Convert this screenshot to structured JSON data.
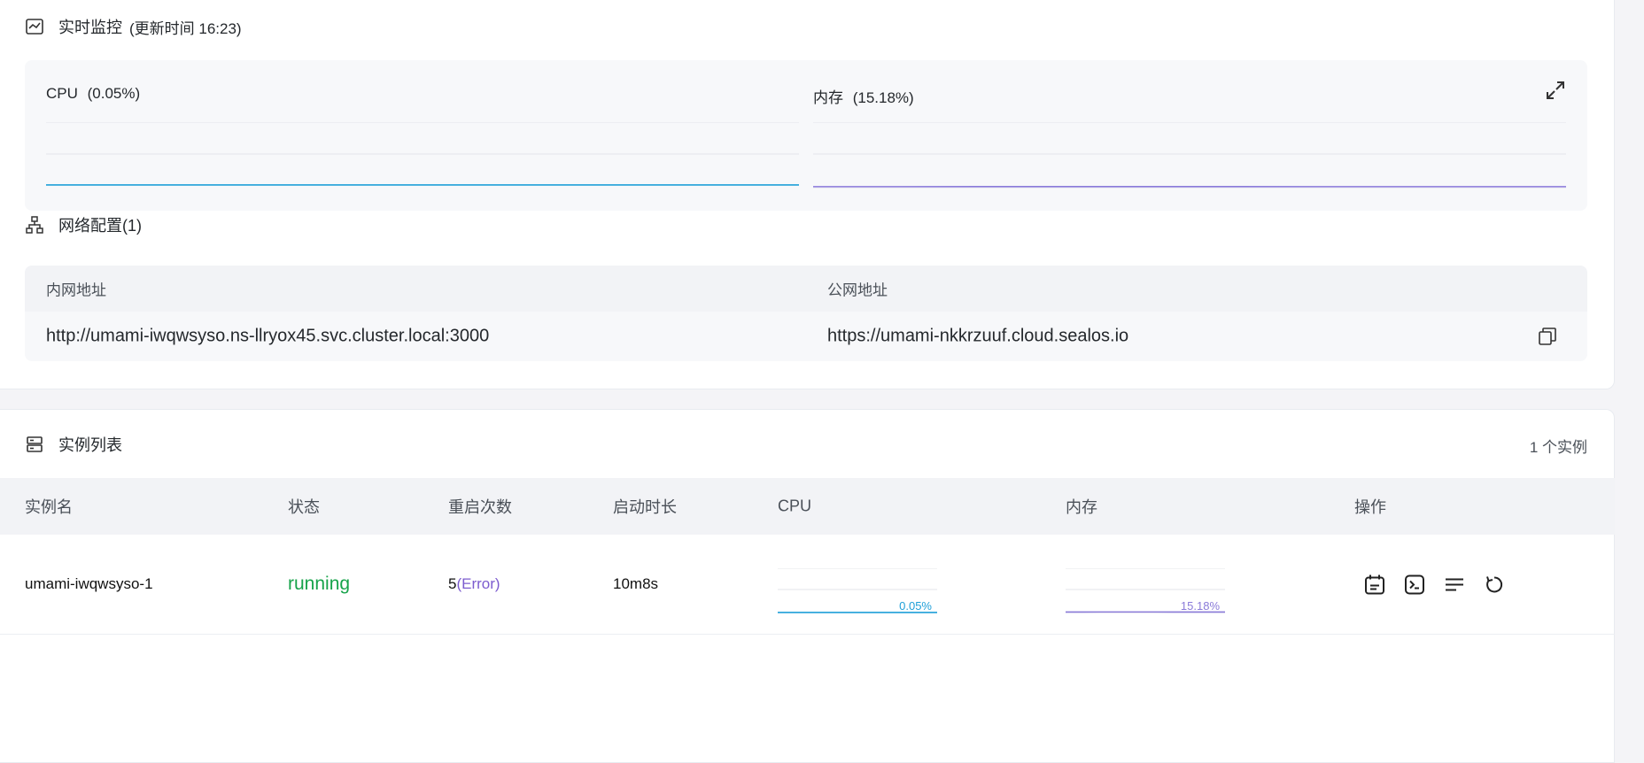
{
  "monitor": {
    "title": "实时监控",
    "updated": "(更新时间 16:23)",
    "cpu_label": "CPU",
    "cpu_value": "(0.05%)",
    "mem_label": "内存",
    "mem_value": "(15.18%)",
    "icons": {
      "section": "chart-monitor-icon",
      "expand": "expand-icon"
    },
    "colors": {
      "cpu_line": "#1e9fd8",
      "mem_line": "#8a7bd9",
      "mem_fill": "#ece9fb"
    },
    "cpu_series_pct": [
      0.05,
      0.05,
      0.05,
      0.05,
      0.05,
      0.05,
      0.05,
      0.05,
      0.05,
      0.05
    ],
    "mem_series_pct": [
      15.1,
      15.3,
      15.5,
      15.6,
      15.6,
      15.5,
      15.3,
      15.2,
      15.18,
      15.18
    ]
  },
  "network": {
    "title": "网络配置(1)",
    "icon": "network-icon",
    "columns": [
      "内网地址",
      "公网地址"
    ],
    "internal": "http://umami-iwqwsyso.ns-llryox45.svc.cluster.local:3000",
    "public": "https://umami-nkkrzuuf.cloud.sealos.io",
    "copy_icon": "copy-icon"
  },
  "instances": {
    "title": "实例列表",
    "icon": "server-list-icon",
    "count": "1 个实例",
    "columns": [
      "实例名",
      "状态",
      "重启次数",
      "启动时长",
      "CPU",
      "内存",
      "操作"
    ],
    "rows": [
      {
        "name": "umami-iwqwsyso-1",
        "status": "running",
        "restarts": "5",
        "restart_note": "(Error)",
        "uptime": "10m8s",
        "cpu": "0.05%",
        "mem": "15.18%"
      }
    ],
    "actions": [
      "detail-icon",
      "terminal-icon",
      "logs-icon",
      "restart-icon"
    ]
  }
}
